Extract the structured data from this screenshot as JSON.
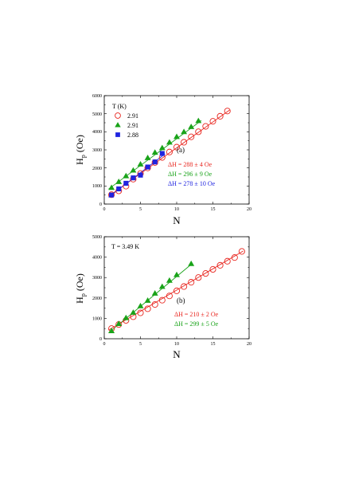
{
  "chart_data": [
    {
      "type": "scatter",
      "panel_label": "(a)",
      "xlabel": "N",
      "ylabel": "H",
      "ylabel_sub": "p",
      "ylabel_unit": " (Oe)",
      "xlim": [
        0,
        20
      ],
      "ylim": [
        0,
        6000
      ],
      "x_ticks": [
        0,
        5,
        10,
        15,
        20
      ],
      "y_ticks": [
        0,
        1000,
        2000,
        3000,
        4000,
        5000,
        6000
      ],
      "x_tick_labels": [
        "0",
        "5",
        "10",
        "15",
        "20"
      ],
      "y_tick_labels": [
        "0",
        "1000",
        "2000",
        "3000",
        "4000",
        "5000",
        "6000"
      ],
      "legend_title": "T (K)",
      "legend_placement": "top-left",
      "series": [
        {
          "name": "2.91",
          "marker": "open-circle",
          "color": "#e8261f",
          "annotation": "ΔH = 288 ± 4 Oe",
          "x": [
            1,
            2,
            3,
            4,
            5,
            6,
            7,
            8,
            9,
            10,
            11,
            12,
            13,
            14,
            15,
            16,
            17
          ],
          "y": [
            520,
            730,
            990,
            1380,
            1690,
            2000,
            2300,
            2580,
            2880,
            3150,
            3420,
            3720,
            4000,
            4300,
            4580,
            4860,
            5150
          ],
          "fit": [
            [
              0.6,
              430
            ],
            [
              17.3,
              5200
            ]
          ]
        },
        {
          "name": "2.91",
          "marker": "filled-triangle",
          "color": "#19a319",
          "annotation": "ΔH = 296 ± 9 Oe",
          "x": [
            1,
            2,
            3,
            4,
            5,
            6,
            7,
            8,
            9,
            10,
            11,
            12,
            13
          ],
          "y": [
            900,
            1230,
            1550,
            1860,
            2200,
            2550,
            2850,
            3100,
            3410,
            3720,
            3990,
            4270,
            4600
          ],
          "fit": [
            [
              0.6,
              830
            ],
            [
              13.4,
              4620
            ]
          ]
        },
        {
          "name": "2.88",
          "marker": "filled-square",
          "color": "#1f24e0",
          "annotation": "ΔH = 278 ± 10 Oe",
          "x": [
            1,
            2,
            3,
            4,
            5,
            6,
            7,
            8
          ],
          "y": [
            500,
            840,
            1150,
            1450,
            1600,
            2050,
            2330,
            2800
          ],
          "fit": [
            [
              0.6,
              380
            ],
            [
              8.4,
              2780
            ]
          ]
        }
      ]
    },
    {
      "type": "scatter",
      "panel_label": "(b)",
      "annotation_top": "T = 3.49 K",
      "xlabel": "N",
      "ylabel": "H",
      "ylabel_sub": "p",
      "ylabel_unit": " (Oe)",
      "xlim": [
        0,
        20
      ],
      "ylim": [
        0,
        5000
      ],
      "x_ticks": [
        0,
        5,
        10,
        15,
        20
      ],
      "y_ticks": [
        0,
        1000,
        2000,
        3000,
        4000,
        5000
      ],
      "x_tick_labels": [
        "0",
        "5",
        "10",
        "15",
        "20"
      ],
      "y_tick_labels": [
        "0",
        "1000",
        "2000",
        "3000",
        "4000",
        "5000"
      ],
      "series": [
        {
          "marker": "open-circle",
          "color": "#e8261f",
          "annotation": "ΔH = 210 ± 2 Oe",
          "x": [
            1,
            2,
            3,
            4,
            5,
            6,
            7,
            8,
            9,
            10,
            11,
            12,
            13,
            14,
            15,
            16,
            17,
            18,
            19
          ],
          "y": [
            500,
            700,
            900,
            1080,
            1270,
            1470,
            1680,
            1890,
            2100,
            2350,
            2560,
            2770,
            3000,
            3200,
            3400,
            3600,
            3800,
            3980,
            4280
          ],
          "fit": [
            [
              0.6,
              430
            ],
            [
              19.2,
              4300
            ]
          ]
        },
        {
          "marker": "filled-triangle",
          "color": "#19a319",
          "annotation": "ΔH = 299 ± 5 Oe",
          "x": [
            1,
            2,
            3,
            4,
            5,
            6,
            7,
            8,
            9,
            10,
            12
          ],
          "y": [
            380,
            730,
            1020,
            1280,
            1600,
            1870,
            2220,
            2550,
            2850,
            3130,
            3670
          ],
          "fit": [
            [
              0.6,
              290
            ],
            [
              12.2,
              3700
            ]
          ]
        }
      ]
    }
  ]
}
